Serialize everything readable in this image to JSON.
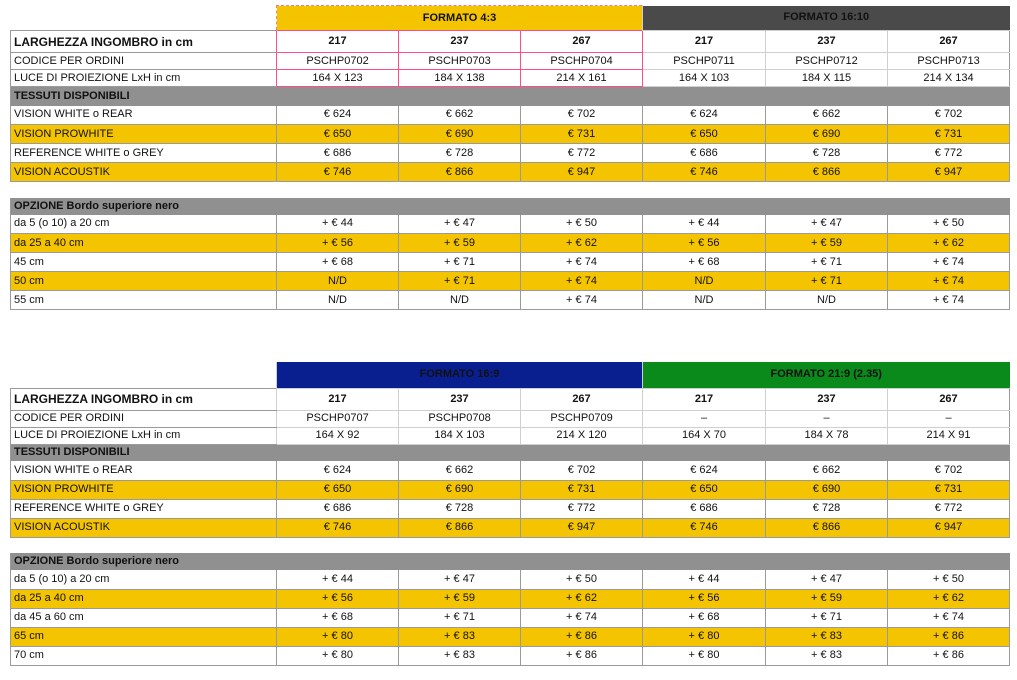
{
  "table1": {
    "formats": [
      {
        "title": "FORMATO 4:3",
        "sizes": [
          "217",
          "237",
          "267"
        ],
        "codes": [
          "PSCHP0702",
          "PSCHP0703",
          "PSCHP0704"
        ],
        "dims": [
          "164 X 123",
          "184 X 138",
          "214 X 161"
        ]
      },
      {
        "title": "FORMATO 16:10",
        "sizes": [
          "217",
          "237",
          "267"
        ],
        "codes": [
          "PSCHP0711",
          "PSCHP0712",
          "PSCHP0713"
        ],
        "dims": [
          "164 X 103",
          "184 X 115",
          "214 X 134"
        ]
      }
    ],
    "label_width": "LARGHEZZA INGOMBRO in cm",
    "label_code": "CODICE PER ORDINI",
    "label_light": "LUCE DI PROIEZIONE LxH in cm",
    "section_fabrics": "TESSUTI DISPONIBILI",
    "fabrics": [
      {
        "name": "VISION WHITE o REAR",
        "values": [
          "€ 624",
          "€ 662",
          "€ 702",
          "€ 624",
          "€ 662",
          "€ 702"
        ]
      },
      {
        "name": "VISION PROWHITE",
        "values": [
          "€ 650",
          "€ 690",
          "€ 731",
          "€ 650",
          "€ 690",
          "€ 731"
        ]
      },
      {
        "name": "REFERENCE WHITE o GREY",
        "values": [
          "€ 686",
          "€ 728",
          "€ 772",
          "€ 686",
          "€ 728",
          "€ 772"
        ]
      },
      {
        "name": "VISION ACOUSTIK",
        "values": [
          "€ 746",
          "€ 866",
          "€ 947",
          "€ 746",
          "€ 866",
          "€ 947"
        ]
      }
    ],
    "section_options": "OPZIONE Bordo superiore nero",
    "options": [
      {
        "name": "da 5 (o 10) a 20 cm",
        "values": [
          "+ € 44",
          "+ € 47",
          "+ € 50",
          "+ € 44",
          "+ € 47",
          "+ € 50"
        ]
      },
      {
        "name": "da 25 a 40 cm",
        "values": [
          "+ € 56",
          "+ € 59",
          "+ € 62",
          "+ € 56",
          "+ € 59",
          "+ € 62"
        ]
      },
      {
        "name": "45 cm",
        "values": [
          "+ € 68",
          "+ € 71",
          "+ € 74",
          "+ € 68",
          "+ € 71",
          "+ € 74"
        ]
      },
      {
        "name": "50 cm",
        "values": [
          "N/D",
          "+ € 71",
          "+ € 74",
          "N/D",
          "+ € 71",
          "+ € 74"
        ]
      },
      {
        "name": "55 cm",
        "values": [
          "N/D",
          "N/D",
          "+ € 74",
          "N/D",
          "N/D",
          "+ € 74"
        ]
      }
    ]
  },
  "table2": {
    "formats": [
      {
        "title": "FORMATO 16:9",
        "sizes": [
          "217",
          "237",
          "267"
        ],
        "codes": [
          "PSCHP0707",
          "PSCHP0708",
          "PSCHP0709"
        ],
        "dims": [
          "164 X 92",
          "184 X 103",
          "214 X 120"
        ]
      },
      {
        "title": "FORMATO 21:9 (2.35)",
        "sizes": [
          "217",
          "237",
          "267"
        ],
        "codes": [
          "–",
          "–",
          "–"
        ],
        "dims": [
          "164 X 70",
          "184 X 78",
          "214 X 91"
        ]
      }
    ],
    "label_width": "LARGHEZZA INGOMBRO in cm",
    "label_code": "CODICE PER ORDINI",
    "label_light": "LUCE DI PROIEZIONE LxH in cm",
    "section_fabrics": "TESSUTI DISPONIBILI",
    "fabrics": [
      {
        "name": "VISION WHITE o REAR",
        "values": [
          "€ 624",
          "€ 662",
          "€ 702",
          "€ 624",
          "€ 662",
          "€ 702"
        ]
      },
      {
        "name": "VISION PROWHITE",
        "values": [
          "€ 650",
          "€ 690",
          "€ 731",
          "€ 650",
          "€ 690",
          "€ 731"
        ]
      },
      {
        "name": "REFERENCE WHITE o GREY",
        "values": [
          "€ 686",
          "€ 728",
          "€ 772",
          "€ 686",
          "€ 728",
          "€ 772"
        ]
      },
      {
        "name": "VISION ACOUSTIK",
        "values": [
          "€ 746",
          "€ 866",
          "€ 947",
          "€ 746",
          "€ 866",
          "€ 947"
        ]
      }
    ],
    "section_options": "OPZIONE Bordo superiore nero",
    "options": [
      {
        "name": "da 5 (o 10) a 20 cm",
        "values": [
          "+ € 44",
          "+ € 47",
          "+ € 50",
          "+ € 44",
          "+ € 47",
          "+ € 50"
        ]
      },
      {
        "name": "da 25 a 40 cm",
        "values": [
          "+ € 56",
          "+ € 59",
          "+ € 62",
          "+ € 56",
          "+ € 59",
          "+ € 62"
        ]
      },
      {
        "name": "da 45 a 60 cm",
        "values": [
          "+ € 68",
          "+ € 71",
          "+ € 74",
          "+ € 68",
          "+ € 71",
          "+ € 74"
        ]
      },
      {
        "name": "65 cm",
        "values": [
          "+ € 80",
          "+ € 83",
          "+ € 86",
          "+ € 80",
          "+ € 83",
          "+ € 86"
        ]
      },
      {
        "name": "70 cm",
        "values": [
          "+ € 80",
          "+ € 83",
          "+ € 86",
          "+ € 80",
          "+ € 83",
          "+ € 86"
        ]
      }
    ]
  },
  "colors": {
    "yellow": "#f5c400",
    "dark_gray": "#4a4a4a",
    "blue": "#0a1f8f",
    "green": "#0a8a1a",
    "section_gray": "#909090"
  }
}
